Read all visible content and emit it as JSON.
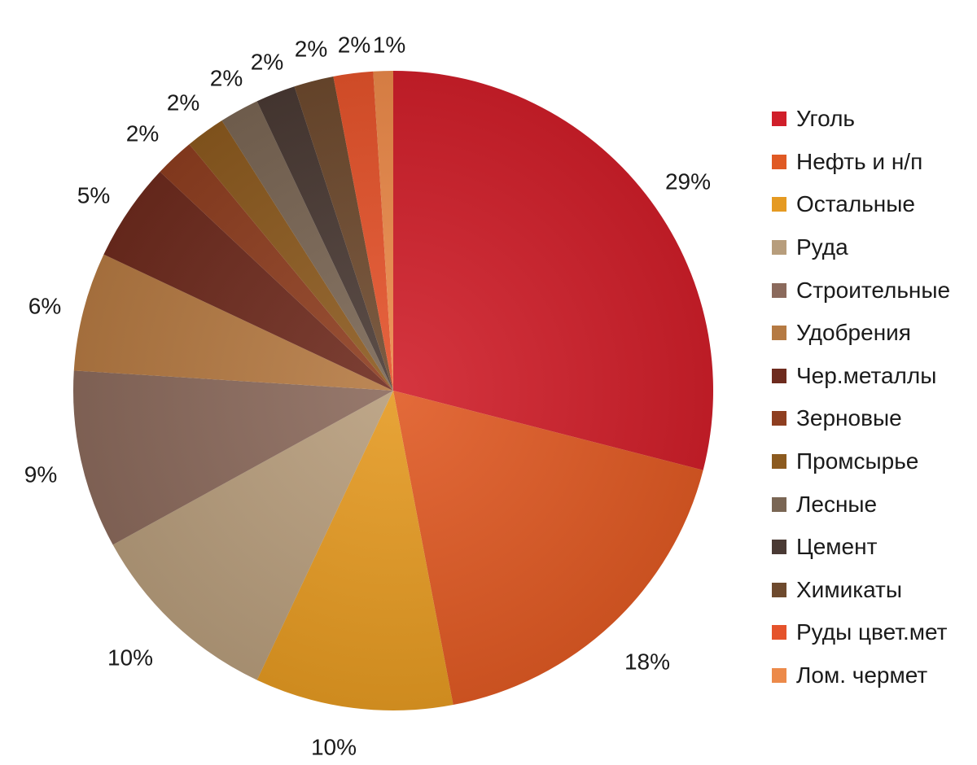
{
  "chart_data": {
    "type": "pie",
    "title": "",
    "start_angle_deg": 0,
    "direction": "clockwise",
    "legend_position": "right",
    "slices": [
      {
        "name": "Уголь",
        "value": 29,
        "label": "29%",
        "color": "#d01f2a"
      },
      {
        "name": "Нефть и н/п",
        "value": 18,
        "label": "18%",
        "color": "#e05a24"
      },
      {
        "name": "Остальные",
        "value": 10,
        "label": "10%",
        "color": "#e59a22"
      },
      {
        "name": "Руда",
        "value": 10,
        "label": "10%",
        "color": "#b79d7c"
      },
      {
        "name": "Строительные",
        "value": 9,
        "label": "9%",
        "color": "#8b6a5c"
      },
      {
        "name": "Удобрения",
        "value": 6,
        "label": "6%",
        "color": "#b57a43"
      },
      {
        "name": "Чер.металлы",
        "value": 5,
        "label": "5%",
        "color": "#6e2b1e"
      },
      {
        "name": "Зерновые",
        "value": 2,
        "label": "2%",
        "color": "#8e3e20"
      },
      {
        "name": "Промсырье",
        "value": 2,
        "label": "2%",
        "color": "#8c5a1f"
      },
      {
        "name": "Лесные",
        "value": 2,
        "label": "2%",
        "color": "#7a6654"
      },
      {
        "name": "Цемент",
        "value": 2,
        "label": "2%",
        "color": "#4a3a34"
      },
      {
        "name": "Химикаты",
        "value": 2,
        "label": "2%",
        "color": "#6e4a2e"
      },
      {
        "name": "Руды цвет.мет",
        "value": 2,
        "label": "2%",
        "color": "#e5532b"
      },
      {
        "name": "Лом. чермет",
        "value": 1,
        "label": "1%",
        "color": "#ec8a4a"
      }
    ]
  }
}
